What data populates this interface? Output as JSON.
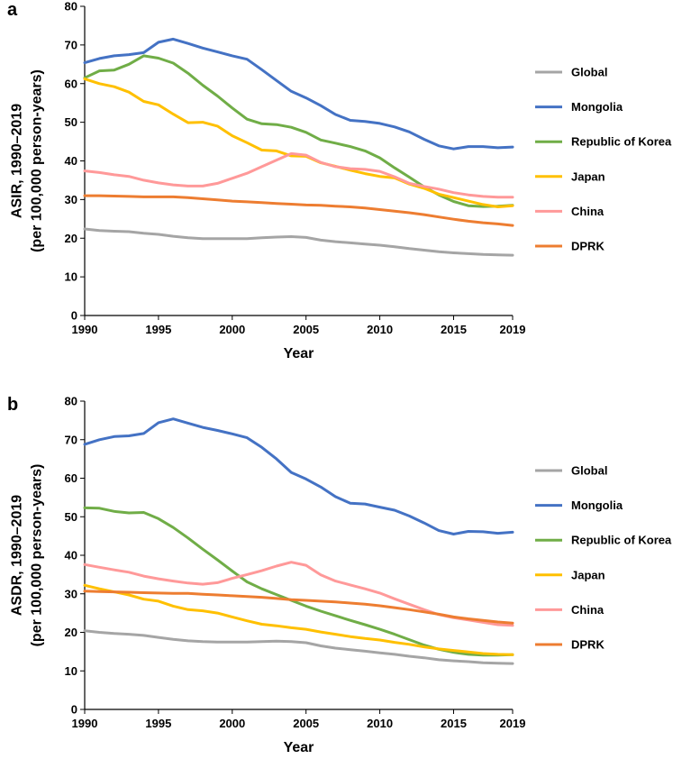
{
  "chart_data": [
    {
      "panel": "a",
      "type": "line",
      "ylabel_line1": "ASIR, 1990–2019",
      "ylabel_line2": "(per 100,000 person-years)",
      "xlabel": "Year",
      "xlim": [
        1990,
        2019
      ],
      "ylim": [
        0,
        80
      ],
      "xticks": [
        1990,
        1995,
        2000,
        2005,
        2010,
        2015,
        2019
      ],
      "yticks": [
        0,
        10,
        20,
        30,
        40,
        50,
        60,
        70,
        80
      ],
      "grid": false,
      "legend": "right",
      "x": [
        1990,
        1991,
        1992,
        1993,
        1994,
        1995,
        1996,
        1997,
        1998,
        1999,
        2000,
        2001,
        2002,
        2003,
        2004,
        2005,
        2006,
        2007,
        2008,
        2009,
        2010,
        2011,
        2012,
        2013,
        2014,
        2015,
        2016,
        2017,
        2018,
        2019
      ],
      "series": [
        {
          "name": "Global",
          "color": "#a5a5a5",
          "values": [
            22.4,
            22.0,
            21.8,
            21.7,
            21.3,
            21.0,
            20.5,
            20.1,
            19.9,
            19.9,
            19.9,
            19.9,
            20.1,
            20.3,
            20.4,
            20.2,
            19.5,
            19.1,
            18.8,
            18.5,
            18.2,
            17.8,
            17.3,
            16.9,
            16.5,
            16.2,
            16.0,
            15.8,
            15.7,
            15.6
          ]
        },
        {
          "name": "Mongolia",
          "color": "#4472c4",
          "values": [
            65.4,
            66.5,
            67.2,
            67.5,
            68.0,
            70.7,
            71.5,
            70.4,
            69.2,
            68.2,
            67.2,
            66.3,
            63.6,
            60.8,
            58.0,
            56.3,
            54.3,
            52.0,
            50.5,
            50.2,
            49.7,
            48.8,
            47.5,
            45.6,
            43.9,
            43.1,
            43.7,
            43.7,
            43.4,
            43.6
          ]
        },
        {
          "name": "Republic of Korea",
          "color": "#70ad47",
          "values": [
            61.5,
            63.3,
            63.5,
            65.0,
            67.2,
            66.6,
            65.3,
            62.7,
            59.6,
            56.8,
            53.7,
            50.8,
            49.6,
            49.4,
            48.7,
            47.4,
            45.4,
            44.6,
            43.7,
            42.6,
            40.8,
            38.2,
            35.8,
            33.3,
            31.2,
            29.5,
            28.4,
            28.2,
            28.3,
            28.5
          ]
        },
        {
          "name": "Japan",
          "color": "#ffc000",
          "values": [
            61.2,
            60.0,
            59.2,
            57.8,
            55.4,
            54.5,
            52.1,
            49.9,
            50.0,
            49.0,
            46.5,
            44.7,
            42.8,
            42.6,
            41.3,
            41.2,
            39.5,
            38.6,
            37.6,
            36.7,
            36.0,
            35.6,
            34.0,
            32.9,
            31.4,
            30.5,
            29.6,
            28.7,
            28.1,
            28.4
          ]
        },
        {
          "name": "China",
          "color": "#ff9999",
          "values": [
            37.4,
            37.0,
            36.4,
            36.0,
            35.0,
            34.3,
            33.8,
            33.5,
            33.5,
            34.2,
            35.5,
            36.8,
            38.5,
            40.2,
            41.9,
            41.5,
            39.6,
            38.5,
            38.0,
            37.8,
            37.3,
            35.9,
            34.2,
            33.4,
            32.7,
            31.8,
            31.2,
            30.8,
            30.6,
            30.6
          ]
        },
        {
          "name": "DPRK",
          "color": "#ed7d31",
          "values": [
            31.0,
            31.0,
            30.9,
            30.8,
            30.7,
            30.7,
            30.7,
            30.5,
            30.2,
            29.9,
            29.6,
            29.4,
            29.2,
            29.0,
            28.8,
            28.6,
            28.5,
            28.3,
            28.1,
            27.8,
            27.4,
            27.0,
            26.6,
            26.1,
            25.5,
            24.9,
            24.4,
            24.0,
            23.7,
            23.3
          ]
        }
      ]
    },
    {
      "panel": "b",
      "type": "line",
      "ylabel_line1": "ASDR, 1990–2019",
      "ylabel_line2": "(per 100,000 person-years)",
      "xlabel": "Year",
      "xlim": [
        1990,
        2019
      ],
      "ylim": [
        0,
        80
      ],
      "xticks": [
        1990,
        1995,
        2000,
        2005,
        2010,
        2015,
        2019
      ],
      "yticks": [
        0,
        10,
        20,
        30,
        40,
        50,
        60,
        70,
        80
      ],
      "grid": false,
      "legend": "right",
      "x": [
        1990,
        1991,
        1992,
        1993,
        1994,
        1995,
        1996,
        1997,
        1998,
        1999,
        2000,
        2001,
        2002,
        2003,
        2004,
        2005,
        2006,
        2007,
        2008,
        2009,
        2010,
        2011,
        2012,
        2013,
        2014,
        2015,
        2016,
        2017,
        2018,
        2019
      ],
      "series": [
        {
          "name": "Global",
          "color": "#a5a5a5",
          "values": [
            20.4,
            20.0,
            19.7,
            19.5,
            19.2,
            18.7,
            18.2,
            17.8,
            17.6,
            17.5,
            17.5,
            17.5,
            17.6,
            17.7,
            17.6,
            17.3,
            16.5,
            15.9,
            15.5,
            15.1,
            14.7,
            14.3,
            13.8,
            13.4,
            12.9,
            12.6,
            12.4,
            12.1,
            12.0,
            11.9
          ]
        },
        {
          "name": "Mongolia",
          "color": "#4472c4",
          "values": [
            68.8,
            70.0,
            70.8,
            71.0,
            71.6,
            74.4,
            75.4,
            74.3,
            73.2,
            72.4,
            71.5,
            70.5,
            68.0,
            65.0,
            61.5,
            59.8,
            57.7,
            55.2,
            53.5,
            53.3,
            52.5,
            51.7,
            50.2,
            48.4,
            46.4,
            45.5,
            46.2,
            46.1,
            45.7,
            46.0
          ]
        },
        {
          "name": "Republic of Korea",
          "color": "#70ad47",
          "values": [
            52.3,
            52.2,
            51.4,
            51.0,
            51.1,
            49.5,
            47.2,
            44.5,
            41.6,
            38.8,
            35.9,
            33.1,
            31.3,
            29.8,
            28.3,
            26.8,
            25.5,
            24.3,
            23.1,
            22.0,
            20.8,
            19.5,
            18.1,
            16.7,
            15.6,
            14.8,
            14.3,
            14.1,
            14.1,
            14.2
          ]
        },
        {
          "name": "Japan",
          "color": "#ffc000",
          "values": [
            32.2,
            31.3,
            30.5,
            29.7,
            28.6,
            28.1,
            26.8,
            25.9,
            25.6,
            25.0,
            24.0,
            23.0,
            22.1,
            21.7,
            21.2,
            20.8,
            20.1,
            19.5,
            18.9,
            18.4,
            18.0,
            17.4,
            16.9,
            16.2,
            15.7,
            15.3,
            14.9,
            14.5,
            14.3,
            14.2
          ]
        },
        {
          "name": "China",
          "color": "#ff9999",
          "values": [
            37.6,
            36.9,
            36.2,
            35.6,
            34.6,
            33.9,
            33.3,
            32.8,
            32.5,
            32.9,
            34.0,
            35.0,
            36.0,
            37.2,
            38.2,
            37.4,
            34.9,
            33.3,
            32.3,
            31.3,
            30.2,
            28.7,
            27.3,
            25.9,
            24.6,
            23.8,
            23.2,
            22.6,
            22.0,
            21.8
          ]
        },
        {
          "name": "DPRK",
          "color": "#ed7d31",
          "values": [
            30.7,
            30.6,
            30.5,
            30.4,
            30.3,
            30.2,
            30.1,
            30.1,
            29.9,
            29.7,
            29.5,
            29.3,
            29.1,
            28.8,
            28.5,
            28.3,
            28.1,
            27.9,
            27.6,
            27.3,
            26.9,
            26.4,
            25.9,
            25.3,
            24.7,
            24.0,
            23.5,
            23.1,
            22.7,
            22.4
          ]
        }
      ]
    }
  ]
}
